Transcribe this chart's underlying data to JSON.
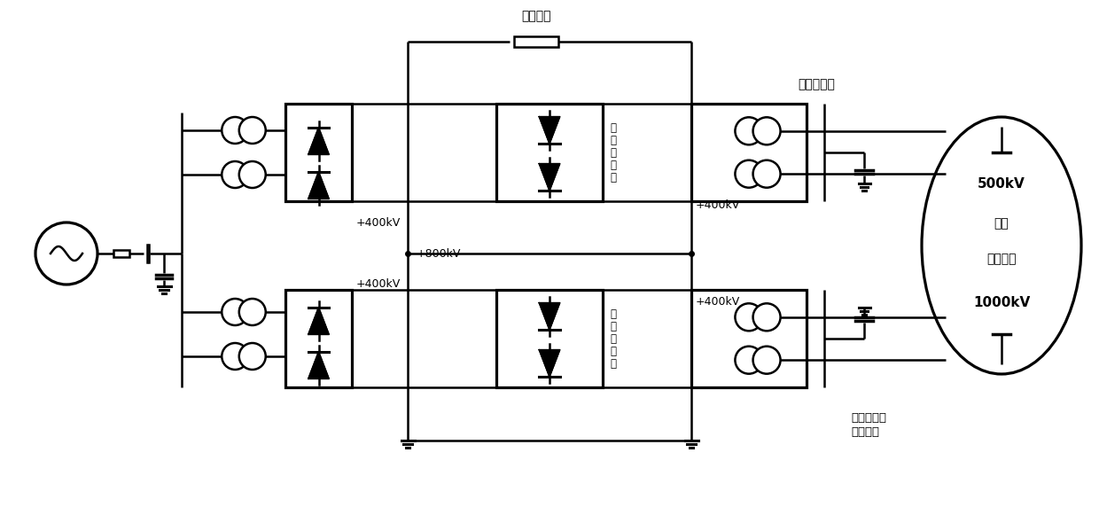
{
  "bg_color": "white",
  "lw": 1.8,
  "labels": {
    "dc_line": "直流线路",
    "high_inv_1": "高",
    "high_inv_2": "端",
    "high_inv_3": "逆",
    "high_inv_4": "变",
    "high_inv_5": "器",
    "low_inv_1": "低",
    "low_inv_2": "端",
    "low_inv_3": "逆",
    "low_inv_4": "变",
    "low_inv_5": "器",
    "conv_trans": "换流变压器",
    "filter_1": "滤波与无功",
    "filter_2": "补偿装置",
    "v800": "+800kV",
    "v400_top": "+400kV",
    "v400_bot": "+400kV",
    "ac_500": "500kV",
    "ac_shou": "受端",
    "ac_jiaoliu": "交流电网",
    "ac_1000": "1000kV"
  },
  "fontsize_label": 9,
  "fontsize_kv": 9,
  "fontsize_inv": 8.5,
  "fontsize_ellipse": 10
}
